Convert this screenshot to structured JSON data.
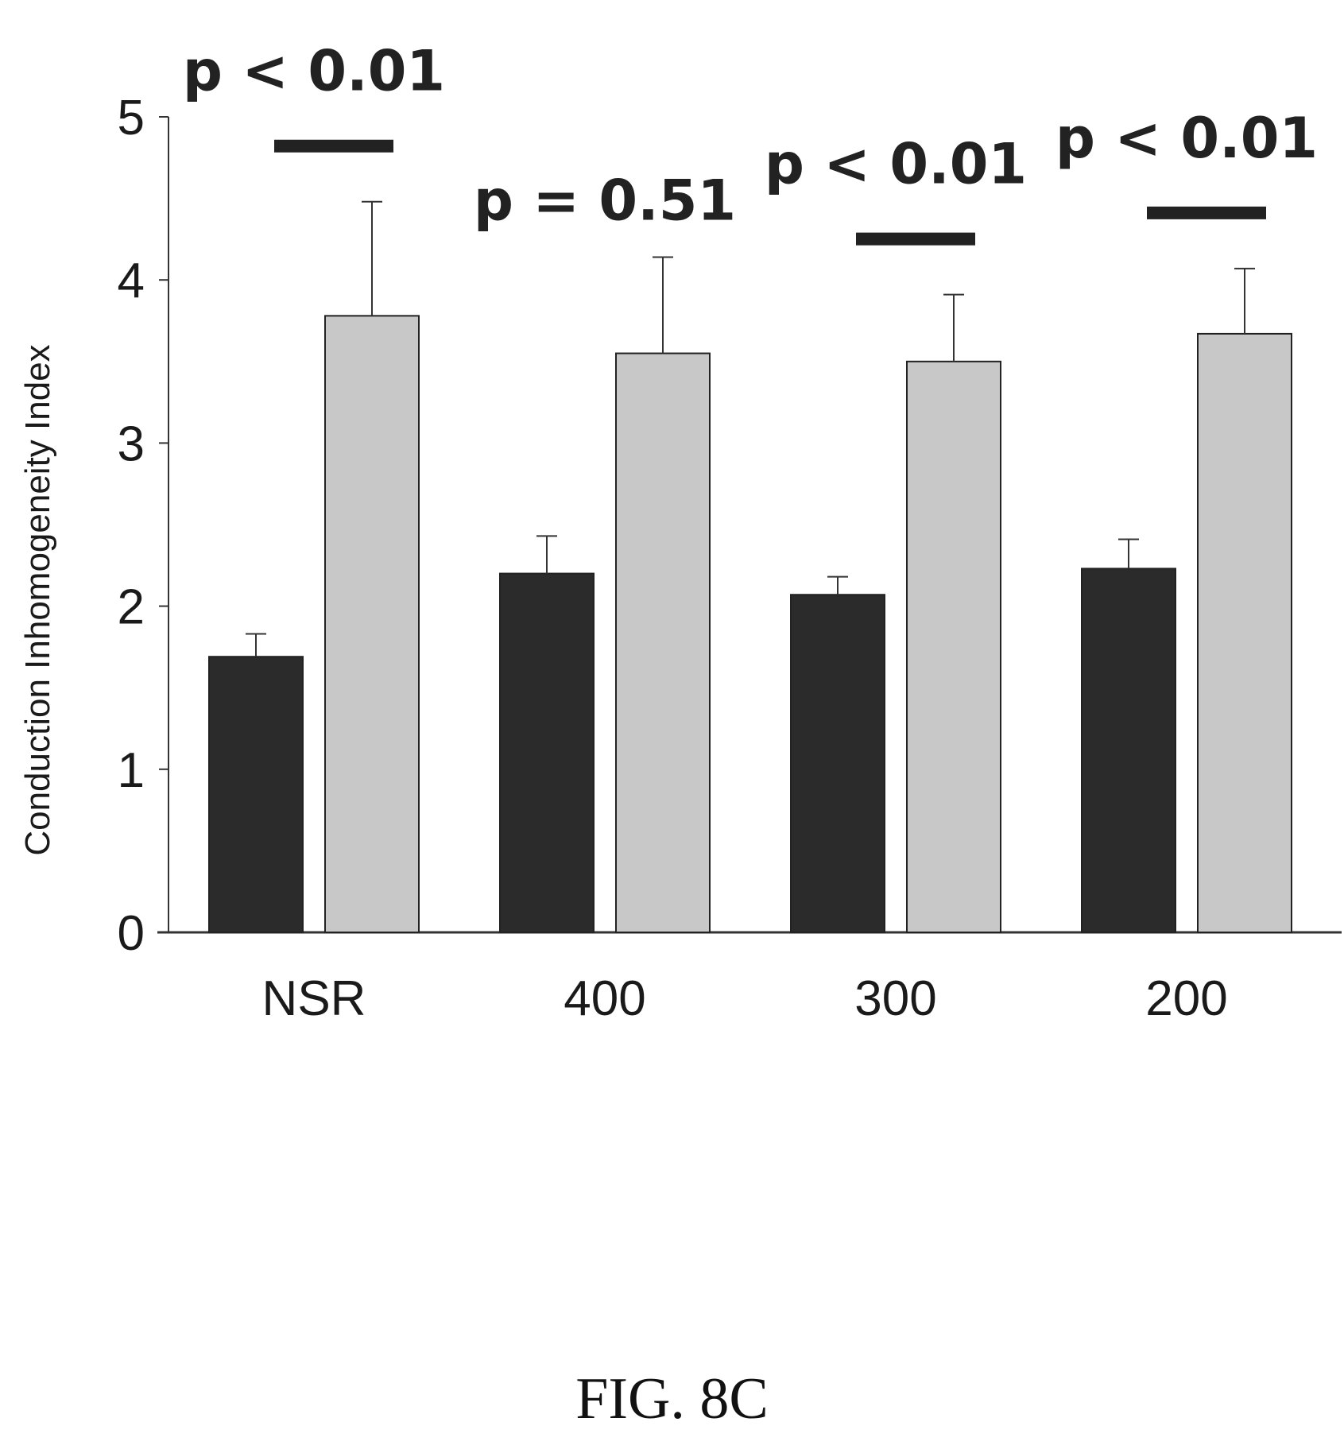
{
  "figure_label": "FIG. 8C",
  "chart_data": {
    "type": "bar",
    "categories": [
      "NSR",
      "400",
      "300",
      "200"
    ],
    "series": [
      {
        "values": [
          1.69,
          2.2,
          2.07,
          2.23
        ],
        "errors": [
          0.14,
          0.23,
          0.11,
          0.18
        ],
        "color": "#2b2b2b"
      },
      {
        "values": [
          3.78,
          3.55,
          3.5,
          3.67
        ],
        "errors": [
          0.7,
          0.59,
          0.41,
          0.4
        ],
        "color": "#c8c8c8"
      }
    ],
    "ylabel": "Conduction Inhomogeneity Index",
    "ylim": [
      0,
      5
    ],
    "yticks": [
      0,
      1,
      2,
      3,
      4,
      5
    ],
    "grid": false,
    "annotations": [
      {
        "category": "NSR",
        "text": "p < 0.01",
        "bar": true
      },
      {
        "category": "400",
        "text": "p = 0.51",
        "bar": false
      },
      {
        "category": "300",
        "text": "p < 0.01",
        "bar": true
      },
      {
        "category": "200",
        "text": "p < 0.01",
        "bar": true
      }
    ]
  }
}
